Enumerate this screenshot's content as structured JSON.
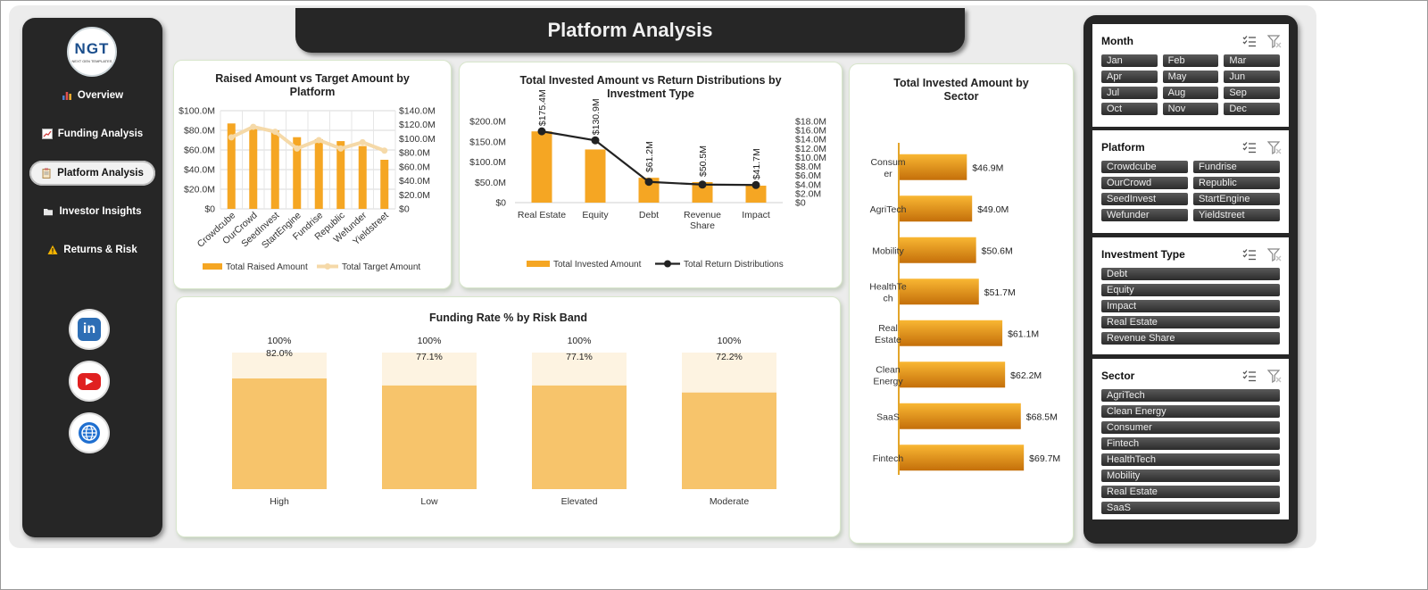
{
  "header": {
    "title": "Platform Analysis"
  },
  "logo": {
    "text": "NGT",
    "subtitle": "NEXT GEN TEMPLATES"
  },
  "sidebar": {
    "items": [
      {
        "label": "Overview",
        "icon": "bar-chart-icon"
      },
      {
        "label": "Funding Analysis",
        "icon": "line-chart-icon"
      },
      {
        "label": "Platform Analysis",
        "icon": "clipboard-icon",
        "active": true
      },
      {
        "label": "Investor Insights",
        "icon": "folder-icon"
      },
      {
        "label": "Returns & Risk",
        "icon": "warning-icon"
      }
    ],
    "social": [
      "linkedin-icon",
      "youtube-icon",
      "globe-icon"
    ]
  },
  "charts": {
    "raised": {
      "title": "Raised Amount vs Target Amount by Platform",
      "legend": [
        "Total Raised Amount",
        "Total Target Amount"
      ]
    },
    "invested": {
      "title": "Total Invested Amount vs Return Distributions by Investment Type",
      "legend": [
        "Total Invested Amount",
        "Total Return Distributions"
      ]
    },
    "sector": {
      "title": "Total Invested Amount by Sector"
    },
    "funding": {
      "title": "Funding Rate % by Risk Band"
    }
  },
  "chart_data": [
    {
      "id": "raised",
      "type": "bar",
      "categories": [
        "Crowdcube",
        "OurCrowd",
        "SeedInvest",
        "StartEngine",
        "Fundrise",
        "Republic",
        "Wefunder",
        "Yieldstreet"
      ],
      "series": [
        {
          "name": "Total Raised Amount",
          "type": "bar",
          "axis": "left",
          "values": [
            87,
            83,
            80,
            73,
            71,
            69,
            64,
            50
          ]
        },
        {
          "name": "Total Target Amount",
          "type": "line",
          "axis": "right",
          "values": [
            102,
            117,
            110,
            86,
            98,
            86,
            95,
            83
          ]
        }
      ],
      "y_left": {
        "ticks": [
          "$0",
          "$20.0M",
          "$40.0M",
          "$60.0M",
          "$80.0M",
          "$100.0M"
        ],
        "ylim": [
          0,
          100
        ]
      },
      "y_right": {
        "ticks": [
          "$0",
          "$20.0M",
          "$40.0M",
          "$60.0M",
          "$80.0M",
          "$100.0M",
          "$120.0M",
          "$140.0M"
        ],
        "ylim": [
          0,
          140
        ]
      },
      "grid": true,
      "legend": "bottom"
    },
    {
      "id": "invested",
      "type": "bar",
      "categories": [
        "Real Estate",
        "Equity",
        "Debt",
        "Revenue Share",
        "Impact"
      ],
      "series": [
        {
          "name": "Total Invested Amount",
          "type": "bar",
          "axis": "left",
          "values": [
            175.4,
            130.9,
            61.2,
            50.5,
            41.7
          ],
          "labels": [
            "$175.4M",
            "$130.9M",
            "$61.2M",
            "$50.5M",
            "$41.7M"
          ]
        },
        {
          "name": "Total Return Distributions",
          "type": "line",
          "axis": "right",
          "values": [
            15.8,
            13.8,
            4.6,
            4.0,
            3.9
          ]
        }
      ],
      "y_left": {
        "ticks": [
          "$0",
          "$50.0M",
          "$100.0M",
          "$150.0M",
          "$200.0M"
        ],
        "ylim": [
          0,
          200
        ]
      },
      "y_right": {
        "ticks": [
          "$0",
          "$2.0M",
          "$4.0M",
          "$6.0M",
          "$8.0M",
          "$10.0M",
          "$12.0M",
          "$14.0M",
          "$16.0M",
          "$18.0M"
        ],
        "ylim": [
          0,
          18
        ]
      },
      "legend": "bottom"
    },
    {
      "id": "sector",
      "type": "bar",
      "orientation": "horizontal",
      "categories": [
        "Consumer",
        "AgriTech",
        "Mobility",
        "HealthTech",
        "Real Estate",
        "Clean Energy",
        "SaaS",
        "Fintech"
      ],
      "display_categories": [
        [
          "Consum",
          "er"
        ],
        [
          "AgriTech"
        ],
        [
          "Mobility"
        ],
        [
          "HealthTe",
          "ch"
        ],
        [
          "Real",
          "Estate"
        ],
        [
          "Clean",
          "Energy"
        ],
        [
          "SaaS"
        ],
        [
          "Fintech"
        ]
      ],
      "values": [
        46.9,
        49.0,
        50.6,
        51.7,
        61.1,
        62.2,
        68.5,
        69.7
      ],
      "labels": [
        "$46.9M",
        "$49.0M",
        "$50.6M",
        "$51.7M",
        "$61.1M",
        "$62.2M",
        "$68.5M",
        "$69.7M"
      ]
    },
    {
      "id": "funding",
      "type": "bar",
      "stacked_overlay": true,
      "categories": [
        "High",
        "Low",
        "Elevated",
        "Moderate"
      ],
      "series": [
        {
          "name": "Target",
          "values": [
            100,
            100,
            100,
            100
          ],
          "labels": [
            "100%",
            "100%",
            "100%",
            "100%"
          ]
        },
        {
          "name": "Funding Rate",
          "values": [
            82.0,
            77.1,
            77.1,
            72.2
          ],
          "labels": [
            "82.0%",
            "77.1%",
            "77.1%",
            "72.2%"
          ]
        }
      ]
    }
  ],
  "slicers": [
    {
      "title": "Month",
      "columns": 3,
      "items": [
        "Jan",
        "Feb",
        "Mar",
        "Apr",
        "May",
        "Jun",
        "Jul",
        "Aug",
        "Sep",
        "Oct",
        "Nov",
        "Dec"
      ]
    },
    {
      "title": "Platform",
      "columns": 2,
      "items": [
        "Crowdcube",
        "Fundrise",
        "OurCrowd",
        "Republic",
        "SeedInvest",
        "StartEngine",
        "Wefunder",
        "Yieldstreet"
      ]
    },
    {
      "title": "Investment Type",
      "columns": 1,
      "items": [
        "Debt",
        "Equity",
        "Impact",
        "Real Estate",
        "Revenue Share"
      ]
    },
    {
      "title": "Sector",
      "columns": 1,
      "items": [
        "AgriTech",
        "Clean Energy",
        "Consumer",
        "Fintech",
        "HealthTech",
        "Mobility",
        "Real Estate",
        "SaaS"
      ]
    }
  ],
  "colors": {
    "bar": "#f5a623",
    "bar_dark": "#e8951a",
    "line_light": "#f5d9a8",
    "line_dark": "#222222",
    "funding_bg": "#fdf3e1",
    "funding_fg": "#f7c46b",
    "sidebar": "#262626"
  }
}
